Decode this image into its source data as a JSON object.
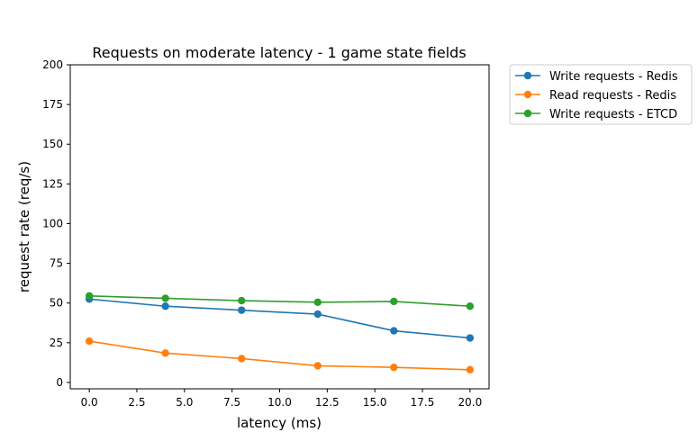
{
  "chart_data": {
    "type": "line",
    "title": "Requests on moderate latency - 1 game state fields",
    "xlabel": "latency (ms)",
    "ylabel": "request rate (req/s)",
    "xlim": [
      -1.0,
      21.0
    ],
    "ylim": [
      -4,
      200
    ],
    "xticks": [
      0.0,
      2.5,
      5.0,
      7.5,
      10.0,
      12.5,
      15.0,
      17.5,
      20.0
    ],
    "xtick_labels": [
      "0.0",
      "2.5",
      "5.0",
      "7.5",
      "10.0",
      "12.5",
      "15.0",
      "17.5",
      "20.0"
    ],
    "yticks": [
      0,
      25,
      50,
      75,
      100,
      125,
      150,
      175,
      200
    ],
    "ytick_labels": [
      "0",
      "25",
      "50",
      "75",
      "100",
      "125",
      "150",
      "175",
      "200"
    ],
    "grid": false,
    "legend_position": "outside-upper-right",
    "x": [
      0,
      4,
      8,
      12,
      16,
      20
    ],
    "series": [
      {
        "name": "Write requests - Redis",
        "color": "#1f77b4",
        "values": [
          52.5,
          48.0,
          45.5,
          43.0,
          32.5,
          28.0
        ]
      },
      {
        "name": "Read requests - Redis",
        "color": "#ff7f0e",
        "values": [
          26.0,
          18.5,
          15.0,
          10.5,
          9.5,
          8.0
        ]
      },
      {
        "name": "Write requests - ETCD",
        "color": "#2ca02c",
        "values": [
          54.5,
          53.0,
          51.5,
          50.5,
          51.0,
          48.0
        ]
      }
    ]
  }
}
